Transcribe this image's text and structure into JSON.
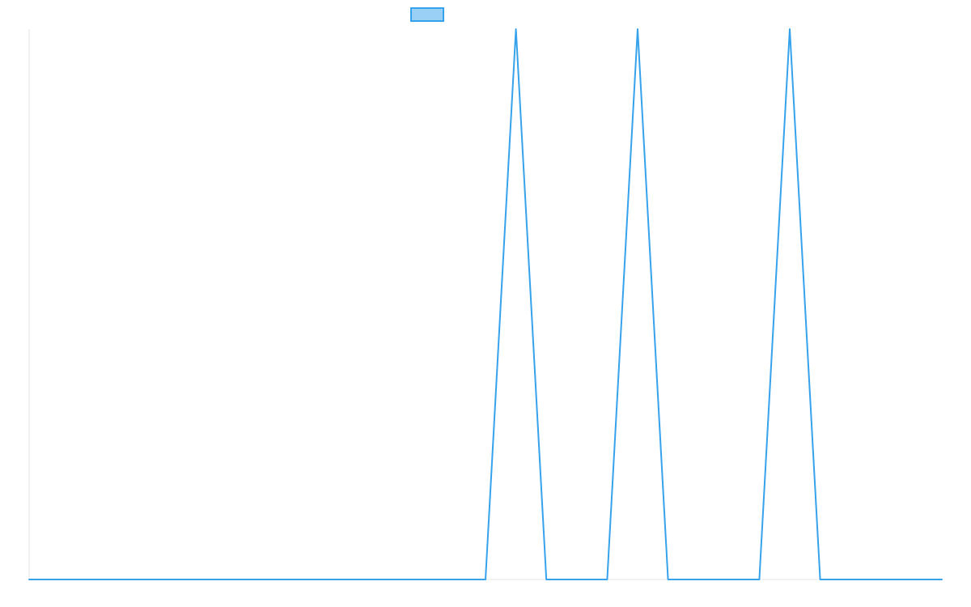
{
  "chart_data": {
    "type": "line",
    "title": "",
    "xlabel": "",
    "ylabel": "",
    "grid": false,
    "legend": {
      "placement": "top-center",
      "swatch_color": "#9AD0F5",
      "swatch_border": "#36A2EB"
    },
    "x": [
      0,
      12,
      13,
      14,
      15,
      16,
      17,
      18,
      19,
      20,
      21,
      22,
      23,
      24,
      25,
      26,
      27,
      28,
      29,
      30
    ],
    "xlim": [
      0,
      30
    ],
    "ylim": [
      0,
      1
    ],
    "series": [
      {
        "color": "#36A2EB",
        "values": [
          0,
          0,
          0,
          0,
          0,
          1,
          0,
          0,
          0,
          1,
          0,
          0,
          0,
          0,
          1,
          0,
          0,
          0,
          0,
          0
        ]
      }
    ]
  }
}
